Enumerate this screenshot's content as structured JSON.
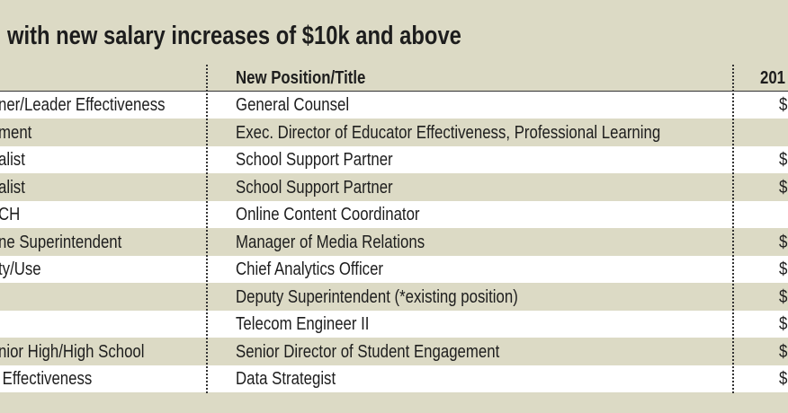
{
  "header": {
    "title": "with new salary increases of $10k and above"
  },
  "table": {
    "columns": {
      "new": "New Position/Title",
      "amount": "201"
    },
    "rows": [
      {
        "old": "ner/Leader Effectiveness",
        "new": "General Counsel",
        "amount": "$"
      },
      {
        "old": "ment",
        "new": "Exec. Director of Educator Effectiveness, Professional Learning"
      },
      {
        "old": "alist",
        "new": "School Support Partner",
        "amount": "$"
      },
      {
        "old": "alist",
        "new": "School Support Partner",
        "amount": "$"
      },
      {
        "old": "CH",
        "new": "Online Content Coordinator"
      },
      {
        "old": "ne Superintendent",
        "new": "Manager of Media Relations",
        "amount": "$"
      },
      {
        "old": "ty/Use",
        "new": "Chief Analytics Officer",
        "amount": "$"
      },
      {
        "new": "Deputy Superintendent (*existing position)",
        "amount": "$"
      },
      {
        "new": "Telecom Engineer II",
        "amount": "$"
      },
      {
        "old": "nior High/High School",
        "new": "Senior Director of Student Engagement",
        "amount": "$"
      },
      {
        "old": " Effectiveness",
        "new": "Data Strategist",
        "amount": "$"
      }
    ]
  }
}
